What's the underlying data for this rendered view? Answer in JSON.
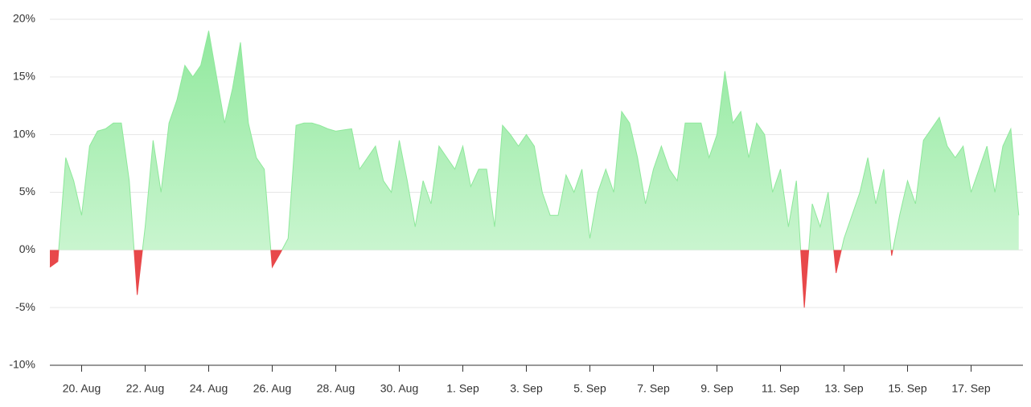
{
  "chart_data": {
    "type": "area",
    "categories": [
      null,
      null,
      null,
      null,
      "20. Aug",
      null,
      null,
      null,
      null,
      null,
      null,
      null,
      "22. Aug",
      null,
      null,
      null,
      null,
      null,
      null,
      null,
      "24. Aug",
      null,
      null,
      null,
      null,
      null,
      null,
      null,
      "26. Aug",
      null,
      null,
      null,
      null,
      null,
      null,
      null,
      "28. Aug",
      null,
      null,
      null,
      null,
      null,
      null,
      null,
      "30. Aug",
      null,
      null,
      null,
      null,
      null,
      null,
      null,
      "1. Sep",
      null,
      null,
      null,
      null,
      null,
      null,
      null,
      "3. Sep",
      null,
      null,
      null,
      null,
      null,
      null,
      null,
      "5. Sep",
      null,
      null,
      null,
      null,
      null,
      null,
      null,
      "7. Sep",
      null,
      null,
      null,
      null,
      null,
      null,
      null,
      "9. Sep",
      null,
      null,
      null,
      null,
      null,
      null,
      null,
      "11. Sep",
      null,
      null,
      null,
      null,
      null,
      null,
      null,
      "13. Sep",
      null,
      null,
      null,
      null,
      null,
      null,
      null,
      "15. Sep",
      null,
      null,
      null,
      null,
      null,
      null,
      null,
      "17. Sep",
      null,
      null,
      null,
      null,
      null,
      null
    ],
    "values": [
      -1.5,
      -1,
      8,
      6,
      3,
      9,
      10.3,
      10.5,
      11,
      11,
      6,
      -3.9,
      2,
      9.5,
      5,
      11,
      13,
      16,
      15,
      16,
      19,
      15,
      11,
      14,
      18,
      11,
      8,
      7,
      -1.5,
      -0.3,
      1,
      10.8,
      11,
      11,
      10.8,
      10.5,
      10.3,
      10.4,
      10.5,
      7,
      8,
      9,
      6,
      5,
      9.5,
      6,
      2,
      6,
      4,
      9,
      8,
      7,
      9,
      5.5,
      7,
      7,
      2,
      10.8,
      10,
      9,
      10,
      9,
      5,
      3,
      3,
      6.5,
      5,
      7,
      1,
      5,
      7,
      5,
      12,
      11,
      8,
      4,
      7,
      9,
      7,
      6,
      11,
      11,
      11,
      8,
      10,
      15.5,
      11,
      12,
      8,
      11,
      10,
      5,
      7,
      2,
      6,
      -5,
      4,
      2,
      5,
      -2,
      1,
      3,
      5,
      8,
      4,
      7,
      -0.5,
      3,
      6,
      4,
      9.5,
      10.5,
      11.5,
      9,
      8,
      9,
      5,
      7,
      9,
      5,
      9,
      10.5,
      3
    ],
    "positive_color": "#8ee89b",
    "negative_color": "#e8484a",
    "ylim": [
      -10,
      20
    ],
    "yticks": [
      {
        "value": -10,
        "label": "-10%"
      },
      {
        "value": -5,
        "label": "-5%"
      },
      {
        "value": 0,
        "label": "0%"
      },
      {
        "value": 5,
        "label": "5%"
      },
      {
        "value": 10,
        "label": "10%"
      },
      {
        "value": 15,
        "label": "15%"
      },
      {
        "value": 20,
        "label": "20%"
      }
    ],
    "grid": true
  }
}
